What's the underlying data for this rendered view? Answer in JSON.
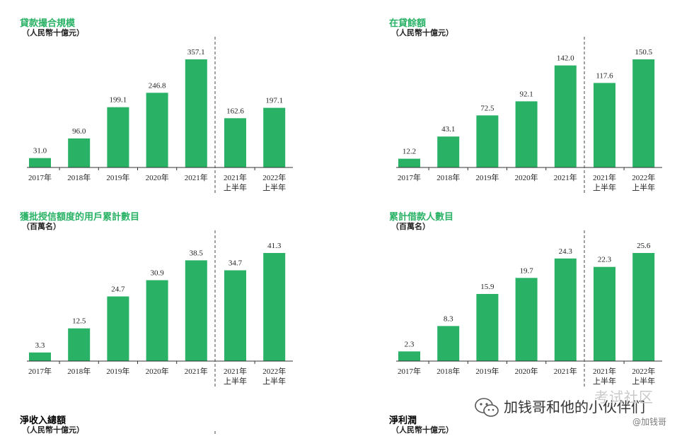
{
  "colors": {
    "bar": "#29b265",
    "title": "#29b265",
    "axis": "#333333",
    "divider": "#444444"
  },
  "chart_data": [
    {
      "type": "bar",
      "title": "貸款撮合規模",
      "subtitle": "（人民幣十億元）",
      "categories": [
        "2017年",
        "2018年",
        "2019年",
        "2020年",
        "2021年",
        "2021年\n上半年",
        "2022年\n上半年"
      ],
      "values": [
        31.0,
        96.0,
        199.1,
        246.8,
        357.1,
        162.6,
        197.1
      ],
      "value_labels": [
        "31.0",
        "96.0",
        "199.1",
        "246.8",
        "357.1",
        "162.6",
        "197.1"
      ],
      "ylim": [
        0,
        357.1
      ],
      "grid": false
    },
    {
      "type": "bar",
      "title": "在貸餘額",
      "subtitle": "（人民幣十億元）",
      "categories": [
        "2017年",
        "2018年",
        "2019年",
        "2020年",
        "2021年",
        "2021年\n上半年",
        "2022年\n上半年"
      ],
      "values": [
        12.2,
        43.1,
        72.5,
        92.1,
        142.0,
        117.6,
        150.5
      ],
      "value_labels": [
        "12.2",
        "43.1",
        "72.5",
        "92.1",
        "142.0",
        "117.6",
        "150.5"
      ],
      "ylim": [
        0,
        150.5
      ],
      "grid": false
    },
    {
      "type": "bar",
      "title": "獲批授信額度的用戶累計數目",
      "subtitle": "（百萬名）",
      "categories": [
        "2017年",
        "2018年",
        "2019年",
        "2020年",
        "2021年",
        "2021年\n上半年",
        "2022年\n上半年"
      ],
      "values": [
        3.3,
        12.5,
        24.7,
        30.9,
        38.5,
        34.7,
        41.3
      ],
      "value_labels": [
        "3.3",
        "12.5",
        "24.7",
        "30.9",
        "38.5",
        "34.7",
        "41.3"
      ],
      "ylim": [
        0,
        41.3
      ],
      "grid": false
    },
    {
      "type": "bar",
      "title": "累計借款人數目",
      "subtitle": "（百萬名）",
      "categories": [
        "2017年",
        "2018年",
        "2019年",
        "2020年",
        "2021年",
        "2021年\n上半年",
        "2022年\n上半年"
      ],
      "values": [
        2.3,
        8.3,
        15.9,
        19.7,
        24.3,
        22.3,
        25.6
      ],
      "value_labels": [
        "2.3",
        "8.3",
        "15.9",
        "19.7",
        "24.3",
        "22.3",
        "25.6"
      ],
      "ylim": [
        0,
        25.6
      ],
      "grid": false
    },
    {
      "type": "bar",
      "title": "淨收入總額",
      "subtitle": "（人民幣十億元）",
      "categories": [],
      "values": []
    },
    {
      "type": "bar",
      "title": "淨利潤",
      "subtitle": "（人民幣十億元）",
      "categories": [],
      "values": []
    }
  ],
  "watermark": {
    "main_text": "加钱哥和他的小伙伴们",
    "brand_text": "考试社区",
    "handle_text": "@加钱哥",
    "icon": "wechat-icon"
  }
}
